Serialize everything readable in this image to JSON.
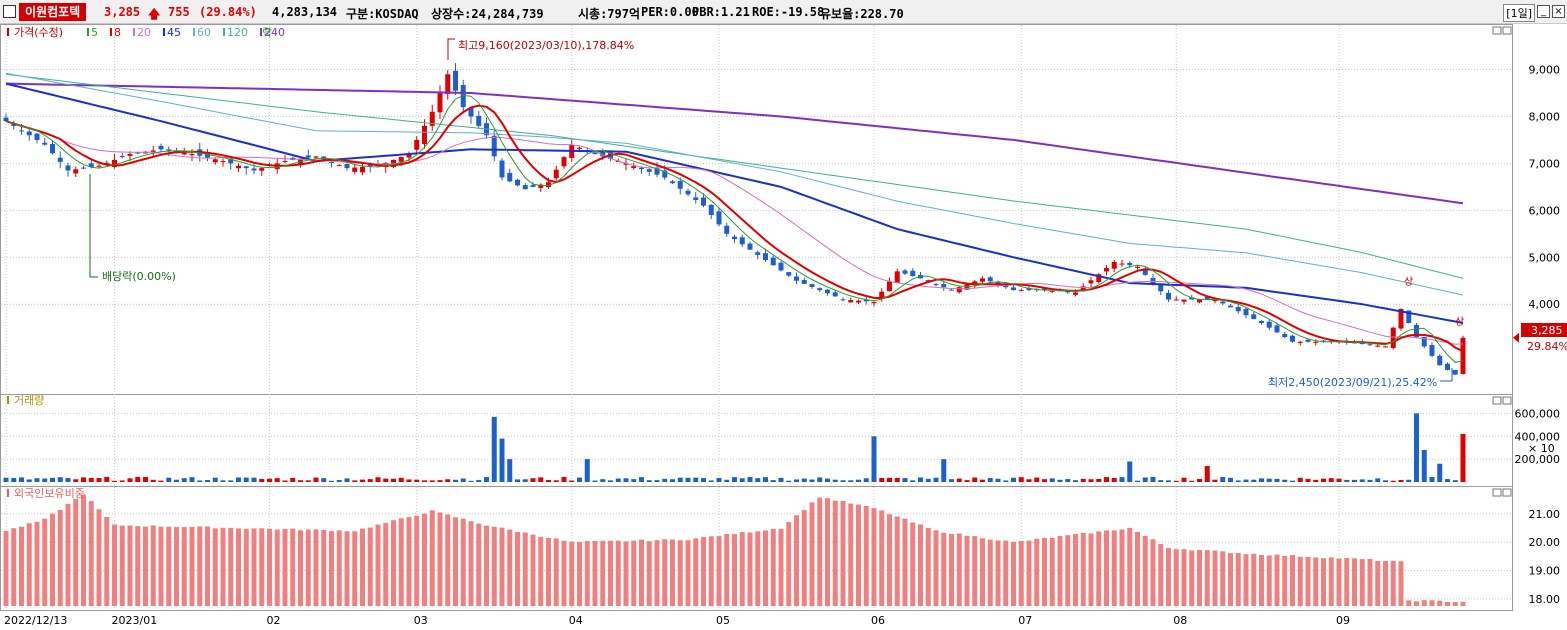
{
  "header": {
    "stock_name": "이원컴포텍",
    "price": "3,285",
    "change": "755",
    "change_pct": "(29.84%)",
    "volume": "4,283,134",
    "market": "구분:KOSDAQ",
    "shares": "상장수:24,284,739",
    "mcap": "시총:797억",
    "per": "PER:0.00",
    "pbr": "PBR:1.21",
    "roe": "ROE:-19.58",
    "turnover": "유보율:228.70",
    "period": "[1일]",
    "up_arrow": "up-arrow-icon",
    "colors": {
      "up": "#e00000",
      "down": "#1e5fd0",
      "name_bg": "#d20000"
    }
  },
  "legend": {
    "price": "가격(수정)",
    "ma": [
      {
        "label": "5",
        "color": "#2a9d2a"
      },
      {
        "label": "8",
        "color": "#e00000"
      },
      {
        "label": "20",
        "color": "#d070c0"
      },
      {
        "label": "45",
        "color": "#1a30c8"
      },
      {
        "label": "60",
        "color": "#60b0d0"
      },
      {
        "label": "120",
        "color": "#40b090"
      },
      {
        "label": "240",
        "color": "#8030c0"
      }
    ],
    "ex_rights": "락"
  },
  "annotations": {
    "high": "최고9,160(2023/03/10),178.84%",
    "low": "최저2,450(2023/09/21),25.42%",
    "dividend": "배당락(0.00%)",
    "upper_limit": "상"
  },
  "price_tag": {
    "value": "3,285",
    "pct": "29.84%"
  },
  "volume_panel": {
    "title": "거래량",
    "unit": "× 10"
  },
  "foreign_panel": {
    "title": "외국인보유비중"
  },
  "chart_data": [
    {
      "type": "candlestick",
      "title": "",
      "y_axis_ticks": [
        "9,000",
        "8,000",
        "7,000",
        "6,000",
        "5,000",
        "4,000"
      ],
      "y_tick_values": [
        9000,
        8000,
        7000,
        6000,
        5000,
        4000
      ],
      "ylim": [
        2300,
        9800
      ],
      "x_tick_labels": [
        "2022/12/13",
        "2023/01",
        "02",
        "03",
        "04",
        "05",
        "06",
        "07",
        "08",
        "09"
      ],
      "x_tick_index": [
        0,
        14,
        34,
        53,
        73,
        92,
        112,
        131,
        151,
        172
      ],
      "n_bars": 190,
      "close_keypoints": [
        [
          0,
          7900
        ],
        [
          5,
          7400
        ],
        [
          8,
          6850
        ],
        [
          12,
          6950
        ],
        [
          16,
          7200
        ],
        [
          20,
          7300
        ],
        [
          24,
          7200
        ],
        [
          28,
          7050
        ],
        [
          32,
          6850
        ],
        [
          36,
          7050
        ],
        [
          40,
          7150
        ],
        [
          44,
          6900
        ],
        [
          48,
          6950
        ],
        [
          52,
          7200
        ],
        [
          55,
          8100
        ],
        [
          57,
          8900
        ],
        [
          59,
          8200
        ],
        [
          62,
          7600
        ],
        [
          64,
          6700
        ],
        [
          67,
          6450
        ],
        [
          70,
          6600
        ],
        [
          73,
          7400
        ],
        [
          76,
          7200
        ],
        [
          80,
          7000
        ],
        [
          85,
          6700
        ],
        [
          90,
          6100
        ],
        [
          93,
          5500
        ],
        [
          97,
          5050
        ],
        [
          102,
          4500
        ],
        [
          108,
          4100
        ],
        [
          112,
          4050
        ],
        [
          115,
          4700
        ],
        [
          118,
          4550
        ],
        [
          122,
          4300
        ],
        [
          126,
          4550
        ],
        [
          130,
          4300
        ],
        [
          134,
          4300
        ],
        [
          138,
          4250
        ],
        [
          143,
          4900
        ],
        [
          146,
          4800
        ],
        [
          150,
          4100
        ],
        [
          156,
          4100
        ],
        [
          162,
          3600
        ],
        [
          166,
          3200
        ],
        [
          172,
          3200
        ],
        [
          178,
          3100
        ],
        [
          180,
          3900
        ],
        [
          182,
          3300
        ],
        [
          185,
          2700
        ],
        [
          187,
          2500
        ],
        [
          188,
          3285
        ]
      ],
      "series": [
        {
          "name": "5",
          "color": "#2a9d2a"
        },
        {
          "name": "8",
          "color": "#e00000"
        },
        {
          "name": "20",
          "color": "#d070c0"
        },
        {
          "name": "45",
          "color": "#1a30c8"
        },
        {
          "name": "60",
          "color": "#60b0d0"
        },
        {
          "name": "120",
          "color": "#40b090"
        },
        {
          "name": "240",
          "color": "#8030c0"
        }
      ],
      "ma45_keypoints": [
        [
          0,
          8700
        ],
        [
          20,
          7900
        ],
        [
          40,
          7050
        ],
        [
          60,
          7300
        ],
        [
          80,
          7250
        ],
        [
          100,
          6500
        ],
        [
          115,
          5600
        ],
        [
          130,
          5000
        ],
        [
          145,
          4450
        ],
        [
          160,
          4350
        ],
        [
          175,
          4000
        ],
        [
          188,
          3600
        ]
      ],
      "ma120_keypoints": [
        [
          0,
          8900
        ],
        [
          40,
          8100
        ],
        [
          70,
          7600
        ],
        [
          100,
          6900
        ],
        [
          130,
          6200
        ],
        [
          160,
          5600
        ],
        [
          175,
          5100
        ],
        [
          188,
          4550
        ]
      ],
      "ma240_keypoints": [
        [
          0,
          8700
        ],
        [
          60,
          8500
        ],
        [
          100,
          8000
        ],
        [
          130,
          7500
        ],
        [
          160,
          6800
        ],
        [
          188,
          6150
        ]
      ]
    },
    {
      "type": "bar",
      "title": "",
      "y_axis_ticks": [
        "600,000",
        "400,000",
        "200,000"
      ],
      "y_tick_values": [
        600000,
        400000,
        200000
      ],
      "ylim": [
        0,
        700000
      ],
      "spikes": [
        [
          63,
          570000
        ],
        [
          64,
          380000
        ],
        [
          65,
          200000
        ],
        [
          75,
          200000
        ],
        [
          112,
          400000
        ],
        [
          121,
          200000
        ],
        [
          145,
          180000
        ],
        [
          155,
          140000
        ],
        [
          182,
          600000
        ],
        [
          183,
          280000
        ],
        [
          185,
          160000
        ],
        [
          188,
          420000
        ]
      ],
      "base_volume": 25000
    },
    {
      "type": "bar",
      "title": "",
      "y_axis_ticks": [
        "21.00",
        "20.00",
        "19.00",
        "18.00"
      ],
      "y_tick_values": [
        21,
        20,
        19,
        18
      ],
      "ylim": [
        17.75,
        21.7
      ],
      "keypoints": [
        [
          0,
          20.4
        ],
        [
          5,
          20.8
        ],
        [
          10,
          21.7
        ],
        [
          14,
          20.6
        ],
        [
          30,
          20.5
        ],
        [
          45,
          20.4
        ],
        [
          55,
          21.1
        ],
        [
          62,
          20.6
        ],
        [
          73,
          20.0
        ],
        [
          88,
          20.1
        ],
        [
          100,
          20.5
        ],
        [
          105,
          21.6
        ],
        [
          112,
          21.2
        ],
        [
          120,
          20.4
        ],
        [
          130,
          20.0
        ],
        [
          145,
          20.5
        ],
        [
          150,
          19.8
        ],
        [
          160,
          19.6
        ],
        [
          175,
          19.4
        ],
        [
          180,
          19.3
        ],
        [
          181,
          17.95
        ],
        [
          188,
          17.9
        ]
      ]
    }
  ]
}
